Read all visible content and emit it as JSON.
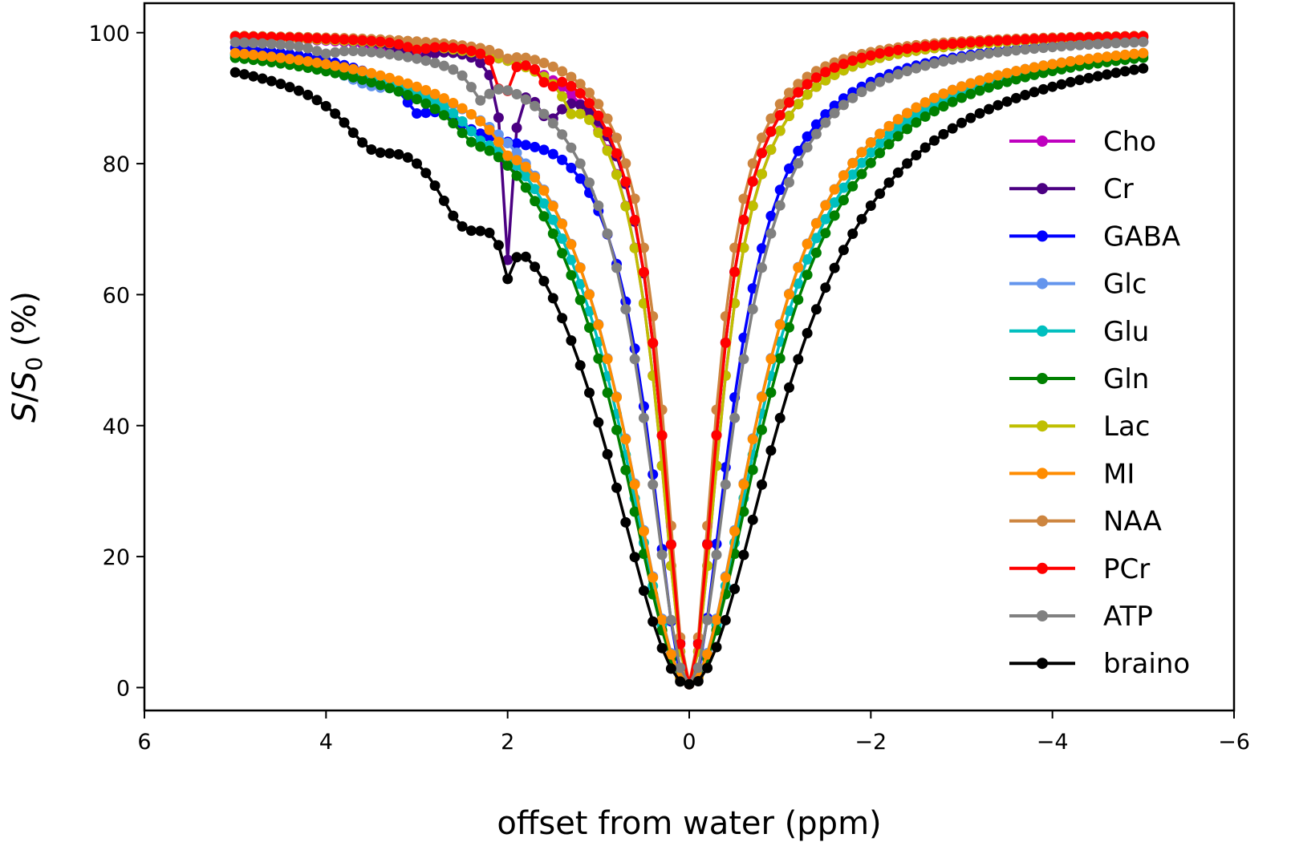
{
  "chart_data": {
    "type": "line",
    "title": "",
    "xlabel": "offset from water (ppm)",
    "ylabel": {
      "main": "S",
      "sep": "/",
      "main2": "S",
      "sub": "0",
      "unit": " (%)"
    },
    "xlim": [
      6,
      -6
    ],
    "ylim": [
      -3.5,
      104.5
    ],
    "xticks": [
      6,
      4,
      2,
      0,
      -2,
      -4,
      -6
    ],
    "xtick_labels": [
      "6",
      "4",
      "2",
      "0",
      "−2",
      "−4",
      "−6"
    ],
    "yticks": [
      0,
      20,
      40,
      60,
      80,
      100
    ],
    "ytick_labels": [
      "0",
      "20",
      "40",
      "60",
      "80",
      "100"
    ],
    "grid": false,
    "legend_position": "right",
    "x_range": {
      "start": 5,
      "end": -5,
      "step": -0.1
    },
    "series": [
      {
        "name": "Cho",
        "color": "#bf00bf",
        "baseline": {
          "w": 0.42,
          "h": 0.16
        },
        "dips": [
          {
            "x0": 3.2,
            "depth": 1.5,
            "w": 0.5
          }
        ]
      },
      {
        "name": "Cr",
        "color": "#4b0082",
        "baseline": {
          "w": 0.38,
          "h": 0.5
        },
        "dips": [
          {
            "x0": 2.0,
            "depth": 30,
            "w": 0.13
          },
          {
            "x0": 1.55,
            "depth": 7,
            "w": 0.4
          },
          {
            "x0": 3.0,
            "depth": 2,
            "w": 0.4
          }
        ]
      },
      {
        "name": "GABA",
        "color": "#0000ff",
        "baseline": {
          "w": 0.55,
          "h": 0.5
        },
        "dips": [
          {
            "x0": 2.2,
            "depth": 10,
            "w": 2.0
          },
          {
            "x0": 3.0,
            "depth": 3,
            "w": 0.3
          }
        ]
      },
      {
        "name": "Glc",
        "color": "#6495ed",
        "baseline": {
          "w": 0.9,
          "h": 0.6
        },
        "dips": [
          {
            "x0": 3.5,
            "depth": 2,
            "w": 0.8
          }
        ]
      },
      {
        "name": "Glu",
        "color": "#00bfbf",
        "baseline": {
          "w": 0.95,
          "h": 0.55
        },
        "dips": [
          {
            "x0": 2.3,
            "depth": 2,
            "w": 0.4
          }
        ]
      },
      {
        "name": "Gln",
        "color": "#008000",
        "baseline": {
          "w": 1.0,
          "h": 0.55
        },
        "dips": [
          {
            "x0": 2.4,
            "depth": 2,
            "w": 0.4
          }
        ]
      },
      {
        "name": "Lac",
        "color": "#bfbf00",
        "baseline": {
          "w": 0.42,
          "h": 0.14
        },
        "dips": [
          {
            "x0": 1.3,
            "depth": 3,
            "w": 0.2
          }
        ]
      },
      {
        "name": "MI",
        "color": "#ff8c00",
        "baseline": {
          "w": 0.9,
          "h": 0.38
        },
        "dips": [
          {
            "x0": 2.0,
            "depth": 2,
            "w": 0.25
          }
        ]
      },
      {
        "name": "NAA",
        "color": "#cd853f",
        "baseline": {
          "w": 0.35,
          "h": 0.12
        },
        "dips": [
          {
            "x0": 2.0,
            "depth": 1,
            "w": 0.2
          }
        ]
      },
      {
        "name": "PCr",
        "color": "#ff0000",
        "baseline": {
          "w": 0.38,
          "h": 0.2
        },
        "dips": [
          {
            "x0": 2.05,
            "depth": 9,
            "w": 0.12
          },
          {
            "x0": 1.55,
            "depth": 3,
            "w": 0.15
          },
          {
            "x0": 3.0,
            "depth": 1,
            "w": 0.3
          }
        ]
      },
      {
        "name": "ATP",
        "color": "#808080",
        "baseline": {
          "w": 0.6,
          "h": 0.35
        },
        "dips": [
          {
            "x0": 2.3,
            "depth": 4,
            "w": 0.25
          },
          {
            "x0": 4.0,
            "depth": 1,
            "w": 0.3
          }
        ]
      },
      {
        "name": "braino",
        "color": "#000000",
        "baseline": {
          "w": 1.2,
          "h": 0.6
        },
        "dips": [
          {
            "x0": 2.0,
            "depth": 7,
            "w": 0.15
          },
          {
            "x0": 3.5,
            "depth": 6,
            "w": 0.8
          },
          {
            "x0": 2.5,
            "depth": 10,
            "w": 0.8
          }
        ]
      }
    ]
  }
}
